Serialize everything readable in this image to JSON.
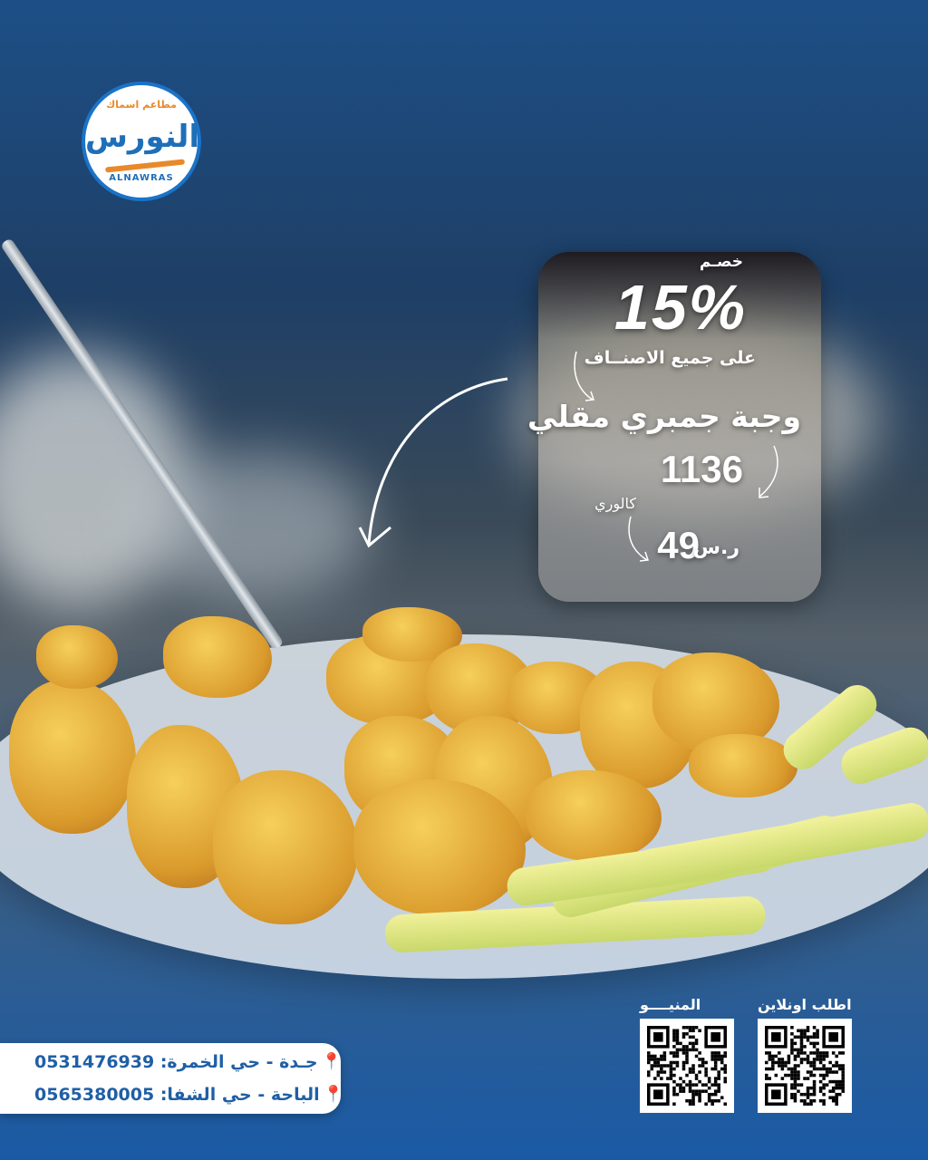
{
  "brand": {
    "name_ar": "النورس",
    "tagline_ar": "مطاعم اسماك",
    "name_en": "ALNAWRAS"
  },
  "promo": {
    "discount_label": "خصـم",
    "discount_value": "15%",
    "applies_to": "على جميع الاصنــاف",
    "meal_name": "وجبة جمبري مقلي",
    "calories_value": "1136",
    "calories_unit": "كالوري",
    "price": "49",
    "currency_symbol": "ر.س"
  },
  "qr_codes": [
    {
      "label": "اطلب اونلاين",
      "icon": "qr-code-icon"
    },
    {
      "label": "المنيــــو",
      "icon": "qr-code-icon"
    }
  ],
  "branches": [
    {
      "text": "جـدة - حي الخمرة: 0531476939",
      "icon": "location-pin-icon"
    },
    {
      "text": "الباحة - حي الشفا: 0565380005",
      "icon": "location-pin-icon"
    }
  ],
  "colors": {
    "brand_blue": "#1f5fa6",
    "pin_red": "#e24a3b",
    "logo_orange": "#e8892a"
  }
}
